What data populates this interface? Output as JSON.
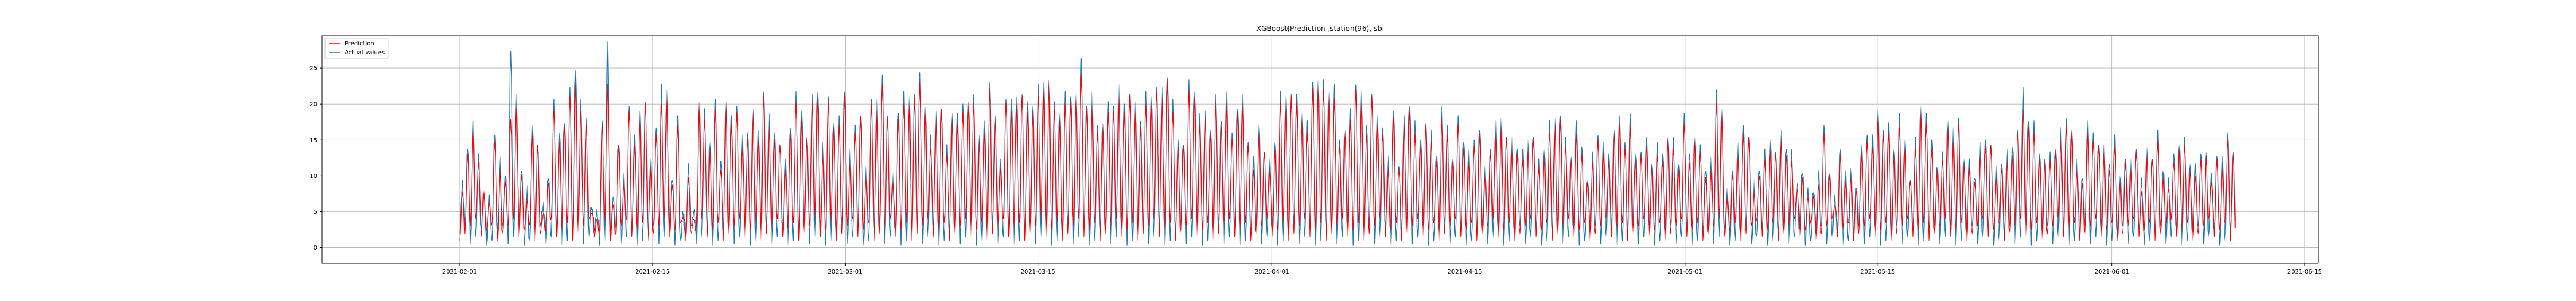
{
  "chart_data": {
    "type": "line",
    "title": "XGBoost(Prediction ,station(96), sbi",
    "xlabel": "",
    "ylabel": "",
    "x_range": [
      "2021-01-22",
      "2021-06-16"
    ],
    "ylim": [
      -2.2,
      29.5
    ],
    "x_ticks": [
      "2021-02-01",
      "2021-02-15",
      "2021-03-01",
      "2021-03-15",
      "2021-04-01",
      "2021-04-15",
      "2021-05-01",
      "2021-05-15",
      "2021-06-01",
      "2021-06-15"
    ],
    "y_ticks": [
      0,
      5,
      10,
      15,
      20,
      25
    ],
    "grid": true,
    "legend": "top-left",
    "data_start": "2021-02-01",
    "data_end": "2021-06-09",
    "series": [
      {
        "name": "Prediction",
        "color": "#ff0000",
        "values": [
          8,
          13,
          16,
          12,
          8,
          6,
          15,
          11,
          9,
          18,
          20,
          10,
          7,
          16,
          14,
          5,
          9,
          19,
          15,
          17,
          21,
          23,
          19,
          17,
          5,
          4,
          17,
          23,
          6,
          14,
          9,
          19,
          14,
          18,
          20,
          11,
          16,
          20,
          21,
          9,
          17,
          4,
          10,
          4,
          20,
          18,
          14,
          19,
          11,
          20,
          17,
          19,
          14,
          15,
          19,
          15,
          21,
          17,
          15,
          14,
          11,
          16,
          20,
          18,
          15,
          20,
          21,
          13,
          20,
          17,
          17,
          21,
          12,
          16,
          18,
          10,
          20,
          19,
          23,
          18,
          9,
          18,
          20,
          20,
          21,
          23,
          19,
          14,
          18,
          19,
          13,
          18,
          17,
          19,
          20,
          20,
          15,
          16,
          22,
          18,
          11,
          20,
          19,
          20,
          21,
          19,
          19,
          21,
          22,
          23,
          19,
          18,
          20,
          20,
          21,
          24,
          19,
          20,
          16,
          17,
          19,
          19,
          21,
          19,
          21,
          19,
          17,
          20,
          20,
          22,
          21,
          23,
          19,
          14,
          14,
          22,
          21,
          17,
          18,
          16,
          20,
          17,
          20,
          15,
          19,
          20,
          14,
          11,
          16,
          13,
          11,
          14,
          20,
          20,
          21,
          20,
          18,
          16,
          22,
          23,
          22,
          21,
          21,
          14,
          16,
          18,
          22,
          20,
          16,
          21,
          17,
          16,
          11,
          18,
          11,
          17,
          19,
          16,
          14,
          17,
          15,
          12,
          18,
          16,
          12,
          17,
          14,
          12,
          14,
          16,
          10,
          13,
          16,
          17,
          15,
          14,
          13,
          12,
          14,
          15,
          11,
          13,
          16,
          17,
          18,
          14,
          12,
          16,
          13,
          9,
          12,
          15,
          13,
          12,
          16,
          17,
          14,
          17,
          12,
          13,
          14,
          11,
          13,
          12,
          15,
          14,
          11,
          17,
          12,
          15,
          13,
          10,
          11,
          20,
          19,
          7,
          10,
          13,
          16,
          15,
          8,
          10,
          12,
          14,
          13,
          15,
          13,
          12,
          8,
          10,
          7,
          7,
          9,
          16,
          10,
          6,
          13,
          9,
          10,
          8,
          13,
          15,
          14,
          18,
          16,
          16,
          13,
          17,
          14,
          9,
          14,
          19,
          17,
          14,
          11,
          12,
          17,
          15,
          17,
          12,
          11,
          9,
          13,
          14,
          14,
          10,
          11,
          12,
          13,
          16,
          19,
          17,
          16,
          12,
          12,
          12,
          13,
          15,
          17,
          16,
          11,
          9,
          16,
          15,
          14,
          13,
          11,
          14,
          9,
          12,
          11,
          13,
          8,
          13,
          12,
          15,
          10,
          8,
          12,
          14,
          14,
          11,
          10,
          12,
          13,
          9,
          12,
          11,
          15,
          13
        ]
      },
      {
        "name": "Actual values",
        "color": "#1f77b4",
        "values": [
          9,
          14,
          17,
          13,
          8,
          7,
          16,
          12,
          10,
          28,
          21,
          11,
          8,
          17,
          15,
          6,
          10,
          20,
          16,
          18,
          22,
          25,
          20,
          18,
          6,
          5,
          18,
          28,
          7,
          15,
          10,
          20,
          15,
          19,
          21,
          12,
          17,
          22,
          22,
          10,
          18,
          5,
          11,
          5,
          21,
          19,
          15,
          20,
          12,
          21,
          18,
          20,
          15,
          16,
          20,
          16,
          22,
          18,
          16,
          15,
          12,
          17,
          21,
          19,
          16,
          21,
          22,
          14,
          21,
          18,
          18,
          22,
          13,
          17,
          19,
          11,
          21,
          20,
          24,
          19,
          10,
          19,
          21,
          21,
          22,
          24,
          20,
          15,
          19,
          20,
          14,
          19,
          18,
          20,
          21,
          21,
          16,
          17,
          23,
          19,
          12,
          21,
          20,
          21,
          22,
          20,
          20,
          22,
          23,
          24,
          20,
          19,
          21,
          21,
          22,
          26,
          20,
          21,
          17,
          18,
          20,
          20,
          22,
          20,
          22,
          20,
          18,
          21,
          21,
          23,
          22,
          24,
          20,
          15,
          15,
          23,
          22,
          18,
          19,
          17,
          21,
          18,
          21,
          16,
          20,
          21,
          15,
          12,
          17,
          14,
          12,
          15,
          21,
          21,
          22,
          21,
          19,
          17,
          23,
          24,
          23,
          22,
          22,
          15,
          17,
          19,
          23,
          21,
          17,
          22,
          18,
          17,
          12,
          19,
          12,
          18,
          20,
          17,
          15,
          18,
          16,
          13,
          19,
          17,
          13,
          18,
          15,
          13,
          15,
          17,
          11,
          14,
          17,
          18,
          16,
          15,
          14,
          13,
          15,
          16,
          12,
          14,
          17,
          18,
          19,
          15,
          13,
          17,
          14,
          10,
          13,
          16,
          14,
          13,
          17,
          18,
          15,
          18,
          13,
          14,
          15,
          12,
          14,
          13,
          16,
          15,
          12,
          18,
          13,
          16,
          14,
          11,
          12,
          22,
          20,
          8,
          11,
          14,
          17,
          16,
          9,
          11,
          13,
          15,
          14,
          16,
          14,
          13,
          9,
          11,
          8,
          8,
          10,
          17,
          11,
          7,
          14,
          10,
          11,
          9,
          14,
          16,
          15,
          19,
          17,
          17,
          14,
          18,
          15,
          10,
          15,
          20,
          18,
          15,
          12,
          13,
          18,
          16,
          18,
          13,
          12,
          10,
          14,
          15,
          15,
          11,
          12,
          13,
          14,
          17,
          22,
          18,
          17,
          13,
          13,
          13,
          14,
          16,
          18,
          17,
          12,
          10,
          17,
          16,
          15,
          14,
          12,
          15,
          10,
          13,
          12,
          14,
          9,
          14,
          13,
          16,
          11,
          9,
          13,
          15,
          15,
          12,
          11,
          13,
          14,
          10,
          13,
          12,
          16,
          14
        ]
      }
    ]
  }
}
